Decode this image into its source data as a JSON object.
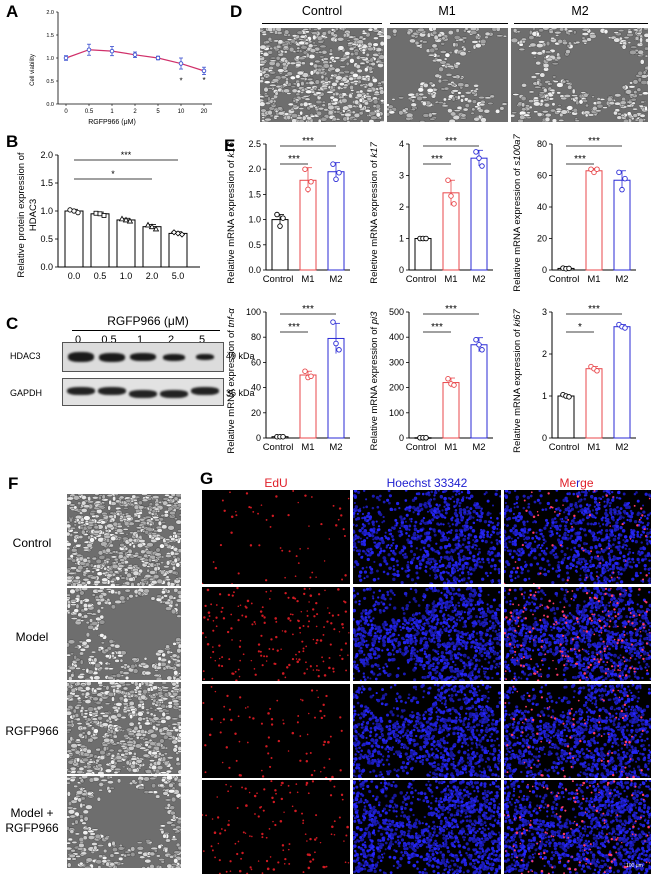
{
  "panels": {
    "A": "A",
    "B": "B",
    "C": "C",
    "D": "D",
    "E": "E",
    "F": "F",
    "G": "G"
  },
  "panelA": {
    "ylabel": "Cell viability",
    "xlabel": "RGFP966  (μM)",
    "yticks": [
      "0.0",
      "0.5",
      "1.0",
      "1.5",
      "2.0"
    ],
    "sig": [
      "*",
      "*"
    ]
  },
  "panelB": {
    "ylabel_line1": "Relative protein expression of",
    "ylabel_line2": "HDAC3",
    "yticks": [
      "0.0",
      "0.5",
      "1.0",
      "1.5",
      "2.0"
    ],
    "sig": [
      "***",
      "*"
    ]
  },
  "panelC": {
    "header": "RGFP966 (μM)",
    "lanes": [
      "0",
      "0.5",
      "1",
      "2",
      "5"
    ],
    "rows": [
      {
        "name": "HDAC3",
        "kda": "49 kDa"
      },
      {
        "name": "GAPDH",
        "kda": "36 kDa"
      }
    ]
  },
  "panelD": {
    "groups": [
      "Control",
      "M1",
      "M2"
    ]
  },
  "panelE": {
    "xcats": [
      "Control",
      "M1",
      "M2"
    ],
    "charts": [
      {
        "ylabel_prefix": "Relative mRNA expression of ",
        "gene": "k16",
        "yticks": [
          "0.0",
          "0.5",
          "1.0",
          "1.5",
          "2.0",
          "2.5"
        ],
        "sig": [
          "***",
          "***"
        ]
      },
      {
        "ylabel_prefix": "Reletive mRNA expression of ",
        "gene": "k17",
        "yticks": [
          "0",
          "1",
          "2",
          "3",
          "4"
        ],
        "sig": [
          "***",
          "***"
        ]
      },
      {
        "ylabel_prefix": "Relative mRNA expression of ",
        "gene": "s100a7",
        "yticks": [
          "0",
          "20",
          "40",
          "60",
          "80"
        ],
        "sig": [
          "***",
          "***"
        ]
      },
      {
        "ylabel_prefix": "Relative mRNA expression of ",
        "gene": "tnf-α",
        "yticks": [
          "0",
          "20",
          "40",
          "60",
          "80",
          "100"
        ],
        "sig": [
          "***",
          "***"
        ]
      },
      {
        "ylabel_prefix": "Relative mRNA expression of ",
        "gene": "pi3",
        "yticks": [
          "0",
          "100",
          "200",
          "300",
          "400",
          "500"
        ],
        "sig": [
          "***",
          "***"
        ]
      },
      {
        "ylabel_prefix": "Relative mRNA expression of ",
        "gene": "ki67",
        "yticks": [
          "0",
          "1",
          "2",
          "3"
        ],
        "sig": [
          "***",
          "*"
        ]
      }
    ]
  },
  "panelF": {
    "rows": [
      "Control",
      "Model",
      "RGFP966",
      "Model +",
      "RGFP966"
    ]
  },
  "panelG": {
    "headers": {
      "edu": "EdU",
      "hoechst": "Hoechst 33342",
      "merge_a": "Me",
      "merge_b": "r",
      "merge_c": "ge"
    },
    "scalebar": "100 μm"
  },
  "colors": {
    "control": "#000000",
    "m1": "#e8474b",
    "m2": "#2a2ad6",
    "lineA": "#d0306a",
    "pointA": "#3a4fd0",
    "edu": "#e0202a",
    "hoechst": "#2020d0"
  },
  "chart_data": [
    {
      "type": "line",
      "panel": "A",
      "x": [
        "0",
        "0.5",
        "1",
        "2",
        "5",
        "10",
        "20"
      ],
      "values": [
        1.0,
        1.18,
        1.15,
        1.07,
        1.0,
        0.88,
        0.72
      ],
      "errors": [
        0.05,
        0.12,
        0.1,
        0.06,
        0.04,
        0.12,
        0.08
      ],
      "xlabel": "RGFP966  (μM)",
      "ylabel": "Cell viability",
      "ylim": [
        0,
        2.0
      ]
    },
    {
      "type": "bar",
      "panel": "B",
      "categories": [
        "0.0",
        "0.5",
        "1.0",
        "2.0",
        "5.0"
      ],
      "values": [
        1.0,
        0.95,
        0.84,
        0.72,
        0.6
      ],
      "points": [
        [
          1.02,
          1.0,
          0.97
        ],
        [
          0.96,
          0.95,
          0.92
        ],
        [
          0.86,
          0.84,
          0.82
        ],
        [
          0.75,
          0.72,
          0.68
        ],
        [
          0.62,
          0.6,
          0.58
        ]
      ],
      "errors": [
        0.03,
        0.03,
        0.03,
        0.04,
        0.03
      ],
      "ylim": [
        0,
        2.0
      ]
    },
    {
      "type": "bar",
      "panel": "E-k16",
      "categories": [
        "Control",
        "M1",
        "M2"
      ],
      "values": [
        1.0,
        1.78,
        1.95
      ],
      "points": [
        [
          1.1,
          0.87,
          1.03
        ],
        [
          2.0,
          1.6,
          1.75
        ],
        [
          2.1,
          1.8,
          1.93
        ]
      ],
      "errors": [
        0.1,
        0.25,
        0.18
      ],
      "ylim": [
        0,
        2.5
      ]
    },
    {
      "type": "bar",
      "panel": "E-k17",
      "categories": [
        "Control",
        "M1",
        "M2"
      ],
      "values": [
        1.0,
        2.45,
        3.55
      ],
      "points": [
        [
          1.0,
          1.0,
          1.0
        ],
        [
          2.85,
          2.35,
          2.1
        ],
        [
          3.75,
          3.55,
          3.3
        ]
      ],
      "errors": [
        0.03,
        0.4,
        0.25
      ],
      "ylim": [
        0,
        4
      ]
    },
    {
      "type": "bar",
      "panel": "E-s100a7",
      "categories": [
        "Control",
        "M1",
        "M2"
      ],
      "values": [
        1.0,
        63,
        57
      ],
      "points": [
        [
          1.2,
          0.8,
          1.0
        ],
        [
          64,
          62,
          64
        ],
        [
          62,
          51,
          58
        ]
      ],
      "errors": [
        0.2,
        1.5,
        6
      ],
      "ylim": [
        0,
        80
      ]
    },
    {
      "type": "bar",
      "panel": "E-tnf",
      "categories": [
        "Control",
        "M1",
        "M2"
      ],
      "values": [
        1.0,
        50,
        79
      ],
      "points": [
        [
          1.0,
          1.0,
          1.0
        ],
        [
          53,
          48,
          49
        ],
        [
          92,
          75,
          70
        ]
      ],
      "errors": [
        0.1,
        3,
        12
      ],
      "ylim": [
        0,
        100
      ]
    },
    {
      "type": "bar",
      "panel": "E-pi3",
      "categories": [
        "Control",
        "M1",
        "M2"
      ],
      "values": [
        1.0,
        220,
        370
      ],
      "points": [
        [
          1,
          1,
          1
        ],
        [
          235,
          215,
          210
        ],
        [
          390,
          370,
          350
        ]
      ],
      "errors": [
        0.5,
        18,
        28
      ],
      "ylim": [
        0,
        500
      ]
    },
    {
      "type": "bar",
      "panel": "E-ki67",
      "categories": [
        "Control",
        "M1",
        "M2"
      ],
      "values": [
        1.0,
        1.65,
        2.65
      ],
      "points": [
        [
          1.03,
          1.0,
          0.98
        ],
        [
          1.7,
          1.65,
          1.6
        ],
        [
          2.7,
          2.65,
          2.62
        ]
      ],
      "errors": [
        0.03,
        0.05,
        0.05
      ],
      "ylim": [
        0,
        3
      ]
    }
  ]
}
